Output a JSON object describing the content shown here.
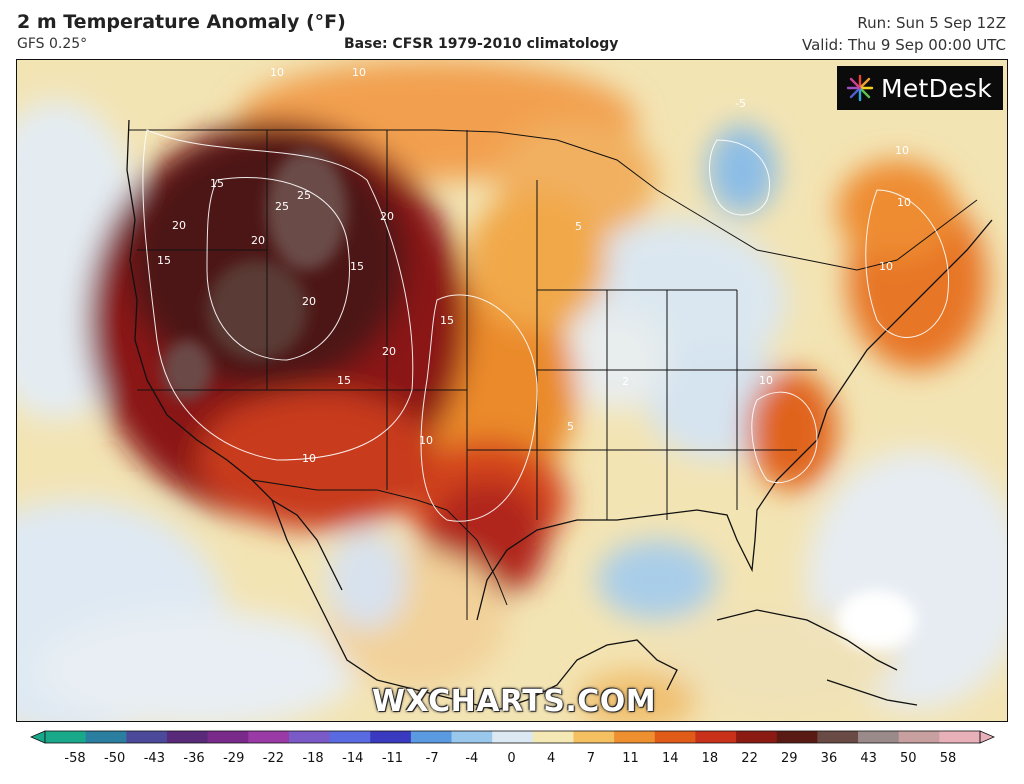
{
  "header": {
    "title": "2 m Temperature Anomaly (°F)",
    "subtitle": "GFS 0.25°",
    "base": "Base: CFSR 1979-2010 climatology",
    "run": "Run: Sun 5 Sep 12Z",
    "valid": "Valid: Thu 9 Sep 00:00 UTC"
  },
  "logo": {
    "text": "MetDesk",
    "icon": "metdesk-burst-icon"
  },
  "watermark": "WXCHARTS.COM",
  "colorbar": {
    "ticks": [
      "-58",
      "-50",
      "-43",
      "-36",
      "-29",
      "-22",
      "-18",
      "-14",
      "-11",
      "-7",
      "-4",
      "0",
      "4",
      "7",
      "11",
      "14",
      "18",
      "22",
      "29",
      "36",
      "43",
      "50",
      "58"
    ],
    "colors": [
      "#1aa88a",
      "#2a7fa0",
      "#4b4a9a",
      "#5a2a7a",
      "#7a2a8a",
      "#9a3aa6",
      "#7a5ac6",
      "#5a6ae0",
      "#3a3ac0",
      "#5a9ae0",
      "#9ac8ec",
      "#dce8f2",
      "#f4e8b4",
      "#f4c060",
      "#ee9030",
      "#e05a18",
      "#c8301a",
      "#8a1a12",
      "#5a1a14",
      "#6a4a44",
      "#9a8a8a",
      "#c8a0a0",
      "#e8b0b8"
    ]
  },
  "contour_labels": [
    "10",
    "10",
    "15",
    "15",
    "20",
    "20",
    "25",
    "25",
    "20",
    "15",
    "15",
    "20",
    "20",
    "15",
    "10",
    "10",
    "10",
    "10",
    "5",
    "10",
    "10",
    "-5",
    "5",
    "2"
  ]
}
